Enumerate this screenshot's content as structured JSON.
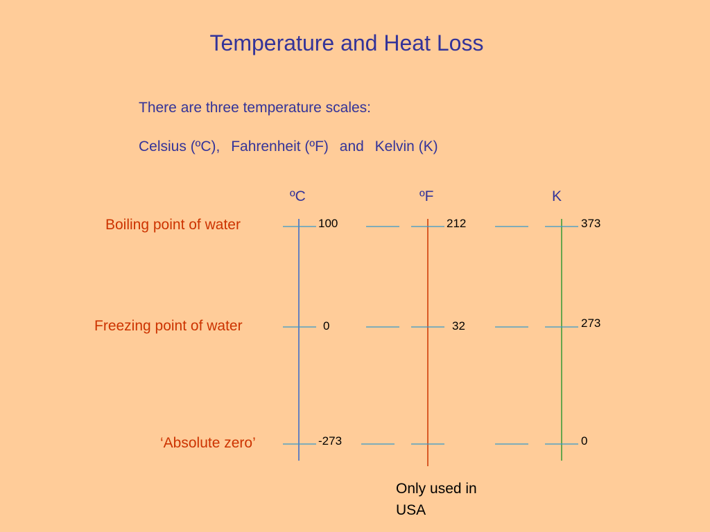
{
  "slide": {
    "title": "Temperature and Heat Loss",
    "intro": "There are three temperature scales:",
    "scales": {
      "celsius": "Celsius (ºC),",
      "fahrenheit": "Fahrenheit (ºF)",
      "and": "and",
      "kelvin": "Kelvin (K)"
    }
  },
  "columns": {
    "celsius_unit": "ºC",
    "fahrenheit_unit": "ºF",
    "kelvin_unit": "K"
  },
  "rows": {
    "boiling": {
      "label": "Boiling point of water",
      "c": "100",
      "f": "212",
      "k": "373"
    },
    "freezing": {
      "label": "Freezing point of water",
      "c": "0",
      "f": "32",
      "k": "273"
    },
    "absolute": {
      "label": "‘Absolute zero’",
      "c": "-273",
      "k": "0"
    }
  },
  "note": "Only used in USA",
  "colors": {
    "background": "#FFCC99",
    "title": "#333399",
    "row_label": "#CC3300",
    "celsius_axis": "#3366CC",
    "fahrenheit_axis": "#CC3300",
    "kelvin_axis": "#339933",
    "tick": "#3399CC"
  }
}
